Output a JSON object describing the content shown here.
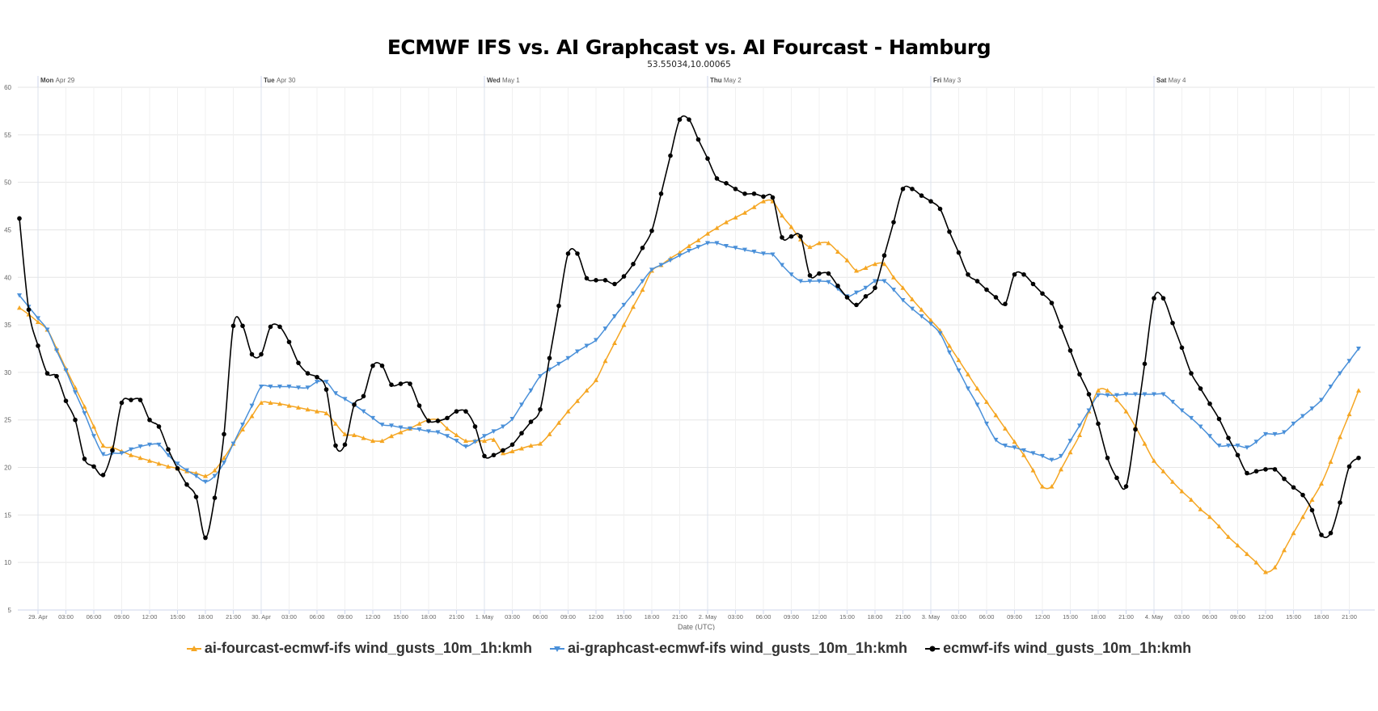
{
  "header": {
    "title": "ECMWF IFS vs. AI Graphcast vs. AI Fourcast - Hamburg",
    "subtitle": "53.55034,10.00065"
  },
  "chart_data": {
    "type": "line",
    "title": "ECMWF IFS vs. AI Graphcast vs. AI Fourcast - Hamburg",
    "subtitle": "53.55034,10.00065",
    "xlabel": "Date (UTC)",
    "ylabel": "",
    "ylim": [
      5,
      60
    ],
    "y_ticks": [
      "5",
      "10",
      "15",
      "20",
      "25",
      "30",
      "35",
      "40",
      "45",
      "50",
      "55",
      "60"
    ],
    "grid": true,
    "legend_position": "bottom",
    "x_start": "28 Apr 22:00 UTC",
    "x_step_hours": 1,
    "x_start_hour_offset": -2,
    "day_headers": [
      {
        "day": "Mon",
        "date": "Apr 29",
        "hour": 0
      },
      {
        "day": "Tue",
        "date": "Apr 30",
        "hour": 24
      },
      {
        "day": "Wed",
        "date": "May 1",
        "hour": 48
      },
      {
        "day": "Thu",
        "date": "May 2",
        "hour": 72
      },
      {
        "day": "Fri",
        "date": "May 3",
        "hour": 96
      },
      {
        "day": "Sat",
        "date": "May 4",
        "hour": 120
      }
    ],
    "x_tick_labels": [
      "29. Apr",
      "03:00",
      "06:00",
      "09:00",
      "12:00",
      "15:00",
      "18:00",
      "21:00",
      "30. Apr",
      "03:00",
      "06:00",
      "09:00",
      "12:00",
      "15:00",
      "18:00",
      "21:00",
      "1. May",
      "03:00",
      "06:00",
      "09:00",
      "12:00",
      "15:00",
      "18:00",
      "21:00",
      "2. May",
      "03:00",
      "06:00",
      "09:00",
      "12:00",
      "15:00",
      "18:00",
      "21:00",
      "3. May",
      "03:00",
      "06:00",
      "09:00",
      "12:00",
      "15:00",
      "18:00",
      "21:00",
      "4. May",
      "03:00",
      "06:00",
      "09:00",
      "12:00",
      "15:00",
      "18:00",
      "21:00"
    ],
    "series": [
      {
        "name": "ai-fourcast-ecmwf-ifs wind_gusts_10m_1h:kmh",
        "color": "#f5a623",
        "marker": "triangle-up",
        "values": [
          36.8,
          36.1,
          35.3,
          34.5,
          32.5,
          30.4,
          28.4,
          26.4,
          24.3,
          22.3,
          22.1,
          21.7,
          21.3,
          21.0,
          20.7,
          20.4,
          20.1,
          19.9,
          19.6,
          19.4,
          19.1,
          19.7,
          21.0,
          22.5,
          24.0,
          25.4,
          26.8,
          26.8,
          26.7,
          26.5,
          26.3,
          26.1,
          25.9,
          25.7,
          24.6,
          23.5,
          23.4,
          23.1,
          22.8,
          22.8,
          23.3,
          23.7,
          24.1,
          24.6,
          25.0,
          25.0,
          24.1,
          23.4,
          22.8,
          22.8,
          22.8,
          22.9,
          21.5,
          21.7,
          22.0,
          22.3,
          22.5,
          23.5,
          24.7,
          25.9,
          27.0,
          28.1,
          29.2,
          31.2,
          33.1,
          35.0,
          36.9,
          38.7,
          40.7,
          41.3,
          42.0,
          42.6,
          43.3,
          43.9,
          44.6,
          45.2,
          45.8,
          46.3,
          46.8,
          47.4,
          48.0,
          48.0,
          46.5,
          45.3,
          44.0,
          43.2,
          43.6,
          43.6,
          42.7,
          41.8,
          40.7,
          41.0,
          41.4,
          41.4,
          40.0,
          38.9,
          37.7,
          36.6,
          35.5,
          34.4,
          32.8,
          31.3,
          29.8,
          28.3,
          26.9,
          25.5,
          24.1,
          22.7,
          21.3,
          19.7,
          18.0,
          18.0,
          19.8,
          21.6,
          23.4,
          25.9,
          28.1,
          28.1,
          27.1,
          25.9,
          24.3,
          22.5,
          20.7,
          19.6,
          18.5,
          17.5,
          16.6,
          15.6,
          14.8,
          13.8,
          12.7,
          11.8,
          10.9,
          10.0,
          9.0,
          9.5,
          11.3,
          13.1,
          14.8,
          16.6,
          18.3,
          20.6,
          23.2,
          25.6,
          28.1
        ]
      },
      {
        "name": "ai-graphcast-ecmwf-ifs wind_gusts_10m_1h:kmh",
        "color": "#4a90d9",
        "marker": "triangle-down",
        "values": [
          38.1,
          36.9,
          35.7,
          34.5,
          32.3,
          30.2,
          27.9,
          25.7,
          23.3,
          21.4,
          21.5,
          21.5,
          21.9,
          22.2,
          22.4,
          22.4,
          21.3,
          20.4,
          19.7,
          19.1,
          18.5,
          19.1,
          20.5,
          22.5,
          24.5,
          26.5,
          28.5,
          28.5,
          28.5,
          28.5,
          28.4,
          28.4,
          29.0,
          29.0,
          27.8,
          27.2,
          26.6,
          25.9,
          25.2,
          24.5,
          24.4,
          24.2,
          24.1,
          24.0,
          23.8,
          23.7,
          23.3,
          22.8,
          22.2,
          22.7,
          23.3,
          23.8,
          24.3,
          25.1,
          26.6,
          28.1,
          29.6,
          30.3,
          30.9,
          31.5,
          32.2,
          32.8,
          33.4,
          34.6,
          35.9,
          37.1,
          38.3,
          39.6,
          40.8,
          41.3,
          41.8,
          42.3,
          42.8,
          43.2,
          43.6,
          43.6,
          43.3,
          43.1,
          42.9,
          42.7,
          42.5,
          42.4,
          41.3,
          40.3,
          39.6,
          39.6,
          39.6,
          39.5,
          38.8,
          38.0,
          38.4,
          38.9,
          39.6,
          39.6,
          38.7,
          37.6,
          36.7,
          35.9,
          35.1,
          34.1,
          32.1,
          30.2,
          28.3,
          26.6,
          24.6,
          22.9,
          22.3,
          22.1,
          21.8,
          21.5,
          21.2,
          20.8,
          21.2,
          22.8,
          24.4,
          26.0,
          27.6,
          27.6,
          27.6,
          27.7,
          27.7,
          27.7,
          27.7,
          27.7,
          26.9,
          26.0,
          25.2,
          24.3,
          23.3,
          22.3,
          22.3,
          22.3,
          22.1,
          22.7,
          23.5,
          23.5,
          23.7,
          24.6,
          25.4,
          26.2,
          27.1,
          28.5,
          29.9,
          31.2,
          32.5
        ]
      },
      {
        "name": "ecmwf-ifs wind_gusts_10m_1h:kmh",
        "color": "#000000",
        "marker": "circle",
        "values": [
          46.2,
          36.6,
          32.8,
          29.9,
          29.6,
          27.0,
          25.0,
          20.9,
          20.1,
          19.2,
          21.8,
          26.8,
          27.1,
          27.1,
          25.0,
          24.3,
          21.9,
          19.9,
          18.2,
          16.9,
          12.6,
          16.8,
          23.5,
          34.9,
          34.9,
          31.9,
          31.9,
          34.8,
          34.8,
          33.2,
          31.0,
          29.9,
          29.5,
          28.2,
          22.3,
          22.4,
          26.6,
          27.5,
          30.7,
          30.7,
          28.7,
          28.8,
          28.8,
          26.5,
          24.9,
          24.9,
          25.2,
          25.9,
          25.9,
          24.3,
          21.2,
          21.3,
          21.8,
          22.4,
          23.6,
          24.8,
          26.1,
          31.5,
          37.0,
          42.5,
          42.5,
          39.9,
          39.7,
          39.7,
          39.3,
          40.1,
          41.4,
          43.1,
          44.9,
          48.8,
          52.8,
          56.6,
          56.6,
          54.5,
          52.5,
          50.4,
          49.9,
          49.3,
          48.8,
          48.8,
          48.5,
          48.4,
          44.2,
          44.3,
          44.3,
          40.2,
          40.4,
          40.4,
          39.1,
          37.9,
          37.1,
          38.0,
          38.9,
          42.3,
          45.8,
          49.3,
          49.3,
          48.6,
          48.0,
          47.2,
          44.8,
          42.6,
          40.3,
          39.6,
          38.7,
          37.9,
          37.2,
          40.3,
          40.3,
          39.3,
          38.3,
          37.3,
          34.8,
          32.3,
          29.8,
          27.7,
          24.6,
          21.0,
          18.9,
          18.0,
          24.0,
          30.9,
          37.8,
          37.8,
          35.2,
          32.6,
          29.9,
          28.3,
          26.7,
          25.1,
          23.1,
          21.3,
          19.4,
          19.6,
          19.8,
          19.8,
          18.8,
          17.9,
          17.1,
          15.5,
          12.9,
          13.1,
          16.3,
          20.1,
          21.0
        ]
      }
    ]
  }
}
